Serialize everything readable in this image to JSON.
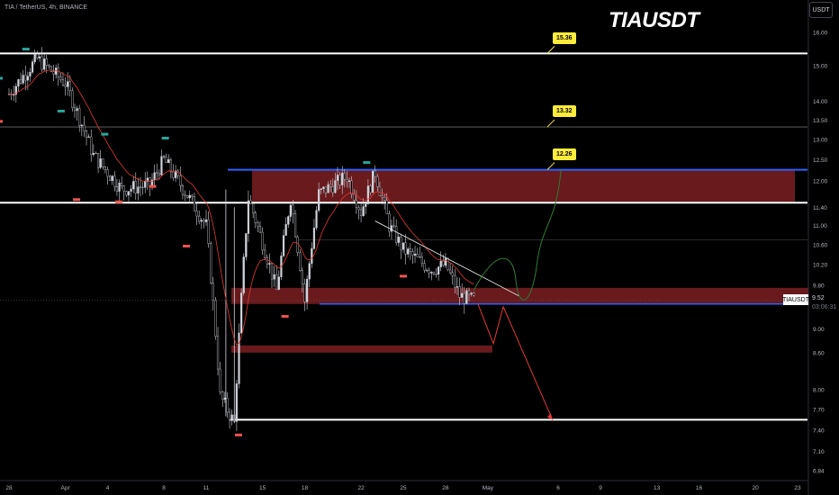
{
  "header": {
    "symbol_line": "TIA / TetherUS, 4h, BINANCE",
    "title": "TIAUSDT",
    "currency": "USDT"
  },
  "price_scale": {
    "ticks": [
      "16.00",
      "15.00",
      "14.00",
      "13.50",
      "13.00",
      "12.50",
      "12.00",
      "11.40",
      "11.00",
      "10.60",
      "10.20",
      "9.80",
      "9.00",
      "8.60",
      "8.00",
      "7.70",
      "7.40",
      "7.10",
      "6.84"
    ]
  },
  "time_scale": {
    "ticks": [
      "28",
      "Apr",
      "4",
      "8",
      "11",
      "15",
      "18",
      "22",
      "25",
      "28",
      "May",
      "6",
      "9",
      "13",
      "16",
      "20",
      "23"
    ]
  },
  "last_price": {
    "symbol": "TIAUSDT",
    "value": "9.52",
    "countdown": "03:06:31"
  },
  "chart_data": {
    "type": "line",
    "title": "TIAUSDT",
    "xlabel": "",
    "ylabel": "",
    "x_range": [
      "Mar 28",
      "May 23"
    ],
    "ylim": [
      6.84,
      16.5
    ],
    "y_scale": "log",
    "grid": false,
    "series": [
      {
        "x": [
          "Mar 28",
          "Mar 30",
          "Apr 1",
          "Apr 3",
          "Apr 5",
          "Apr 7",
          "Apr 8",
          "Apr 10",
          "Apr 11",
          "Apr 12",
          "Apr 13",
          "Apr 14",
          "Apr 16",
          "Apr 17",
          "Apr 18",
          "Apr 19",
          "Apr 21",
          "Apr 22",
          "Apr 23",
          "Apr 24",
          "Apr 25",
          "Apr 26",
          "Apr 27",
          "Apr 28",
          "Apr 29",
          "Apr 30"
        ],
        "values": [
          14.2,
          15.2,
          14.5,
          12.6,
          11.8,
          11.9,
          12.5,
          11.5,
          11.0,
          7.9,
          7.5,
          11.6,
          9.7,
          11.6,
          9.5,
          11.7,
          12.1,
          11.3,
          12.2,
          11.0,
          10.5,
          10.3,
          10.1,
          10.2,
          9.6,
          9.52
        ]
      }
    ],
    "levels": [
      15.36,
      13.32,
      12.26,
      11.5,
      9.45,
      7.55
    ],
    "level_labels": [
      "15.36",
      "13.32",
      "12.26"
    ],
    "zones": [
      {
        "from": 11.5,
        "to": 12.26,
        "color": "#7a1f22"
      },
      {
        "from": 9.45,
        "to": 9.75,
        "color": "#7a1f22"
      },
      {
        "from": 8.6,
        "to": 8.72,
        "color": "#7a1f22"
      }
    ],
    "bullish_path": [
      9.7,
      10.5,
      9.9,
      12.26
    ],
    "bearish_path": [
      9.45,
      8.75,
      9.4,
      7.55
    ],
    "colors": {
      "up": "#d1d4dc",
      "down": "#d1d4dc",
      "ma": "#e53935",
      "support": "#ffffff",
      "blue_level": "#2962ff",
      "zone": "#7a1f22",
      "bull_path": "#2e7d32",
      "bear_path": "#e53935",
      "callout": "#ffeb3b",
      "pivot_high": "#26a69a",
      "pivot_low": "#ef5350"
    }
  }
}
